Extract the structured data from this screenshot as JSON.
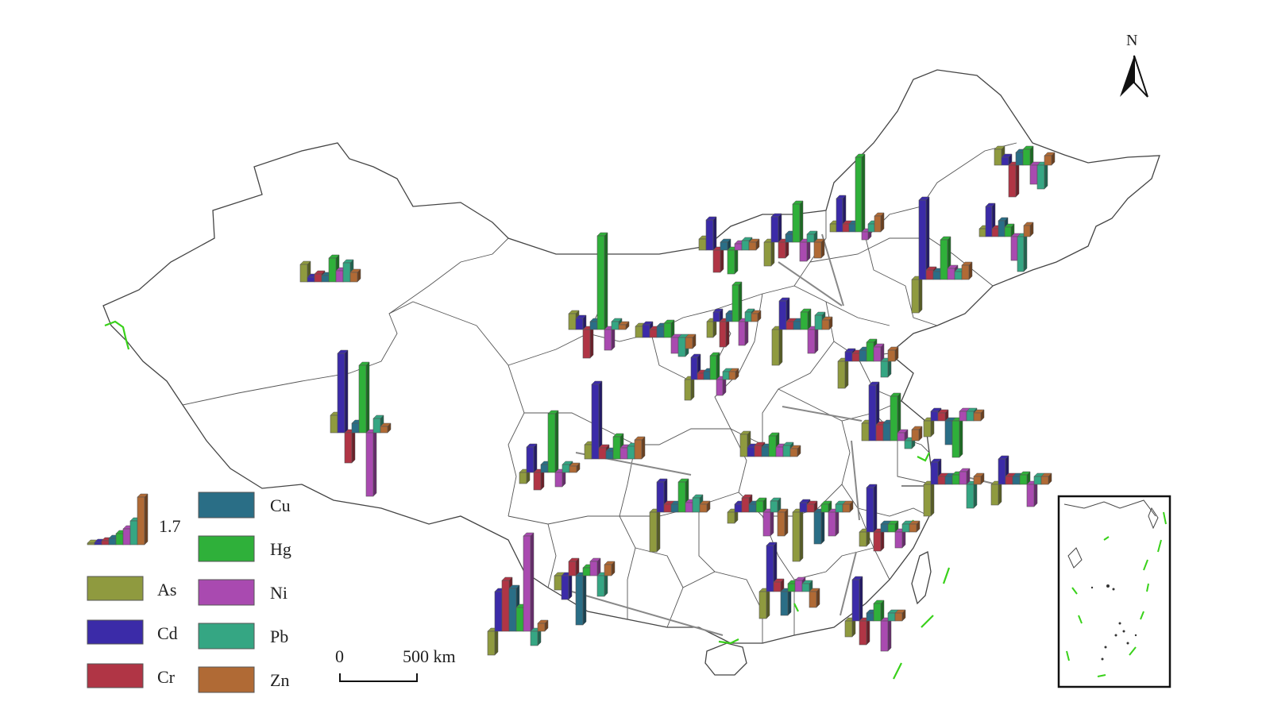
{
  "north_arrow": {
    "label": "N"
  },
  "scale_bar": {
    "start_label": "0",
    "end_label": "500 km"
  },
  "legend": {
    "reference_value": "1.7",
    "items": [
      {
        "label": "As",
        "color": "#8f9a3f"
      },
      {
        "label": "Cd",
        "color": "#3b2ba8"
      },
      {
        "label": "Cr",
        "color": "#b03545"
      },
      {
        "label": "Cu",
        "color": "#2a6e86"
      },
      {
        "label": "Hg",
        "color": "#2fb03a"
      },
      {
        "label": "Ni",
        "color": "#a94ab0"
      },
      {
        "label": "Pb",
        "color": "#35a683"
      },
      {
        "label": "Zn",
        "color": "#b06a35"
      }
    ]
  },
  "colors": {
    "border": "#444444",
    "leader_line": "#888888",
    "highlight_line": "#39d11a"
  }
}
